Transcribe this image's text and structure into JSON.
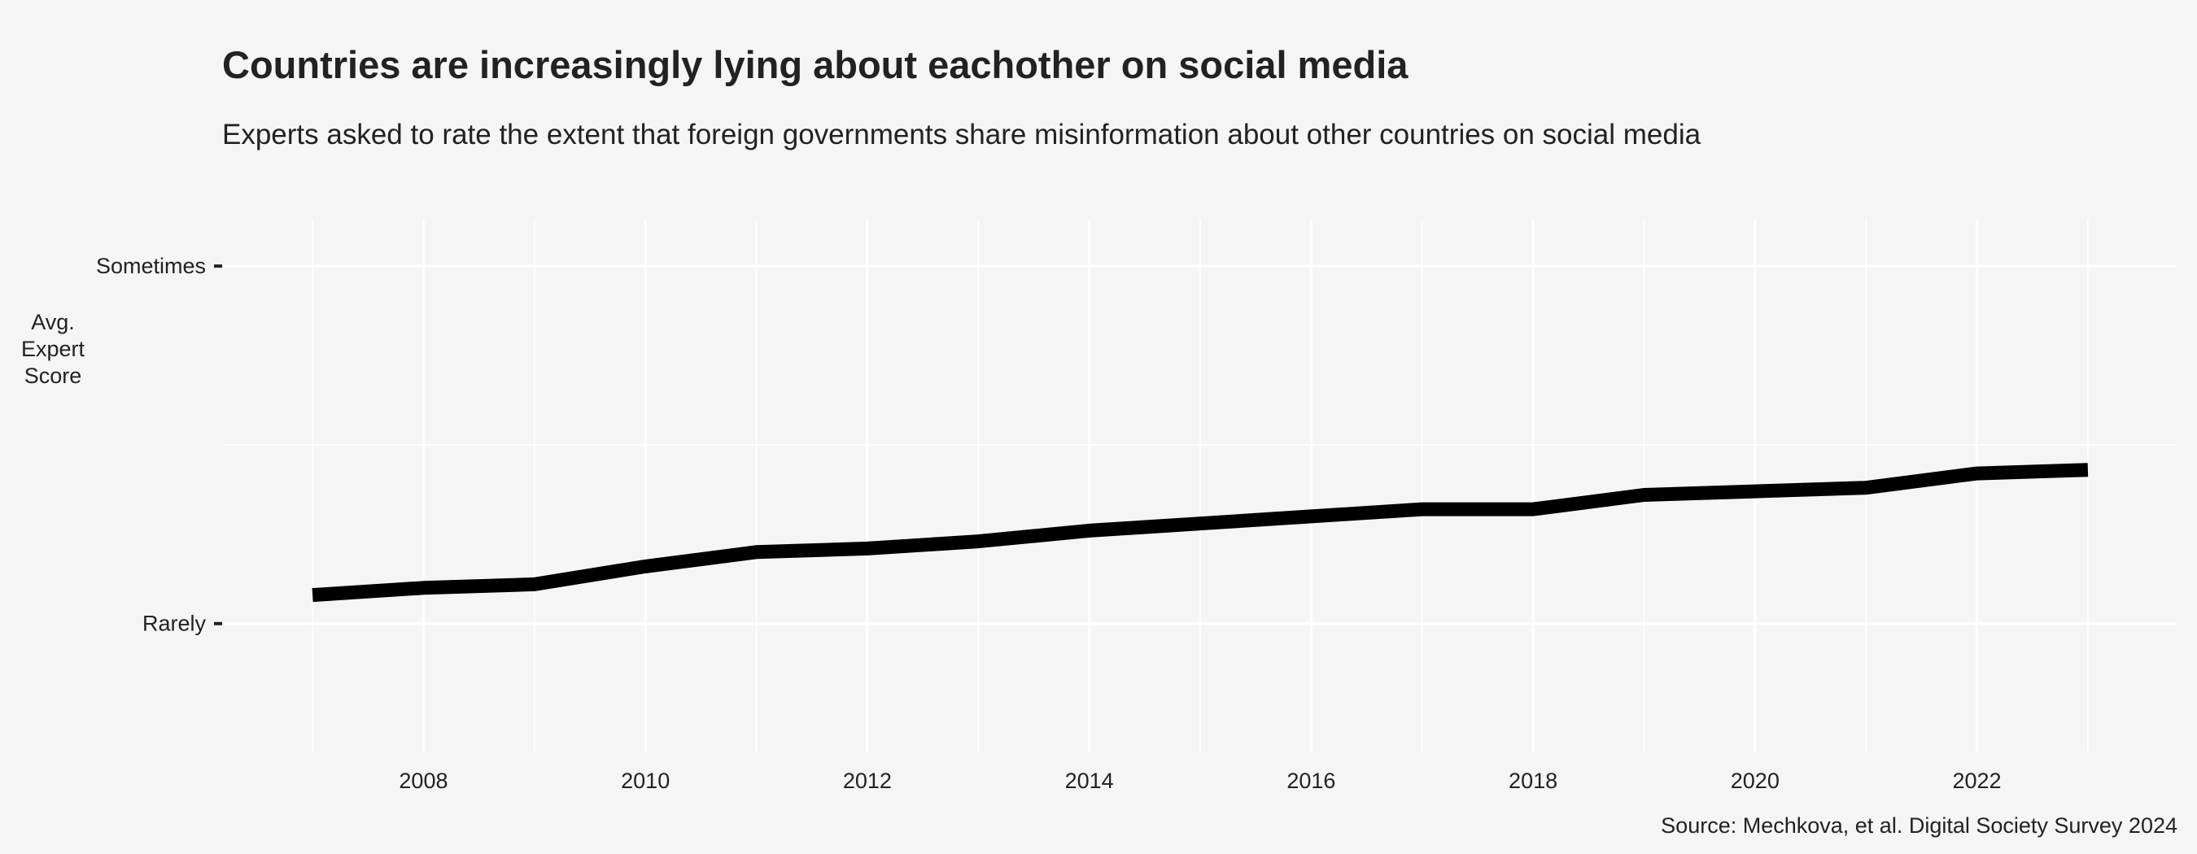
{
  "chart_data": {
    "type": "line",
    "title": "Countries are increasingly lying about eachother on social media",
    "subtitle": "Experts asked to rate the extent that foreign governments share misinformation about other countries on social media",
    "ylabel": "Avg.\nExpert\nScore",
    "xlabel": "",
    "caption": "Source: Mechkova, et al. Digital Society Survey 2024",
    "x": [
      2007,
      2008,
      2009,
      2010,
      2011,
      2012,
      2013,
      2014,
      2015,
      2016,
      2017,
      2018,
      2019,
      2020,
      2021,
      2022,
      2023
    ],
    "series": [
      {
        "values": [
          1.08,
          1.1,
          1.11,
          1.16,
          1.2,
          1.21,
          1.23,
          1.26,
          1.28,
          1.3,
          1.32,
          1.32,
          1.36,
          1.37,
          1.38,
          1.42,
          1.43
        ]
      }
    ],
    "xlim": [
      2006.2,
      2023.8
    ],
    "ylim": [
      0.64,
      2.13
    ],
    "x_ticks": [
      2008,
      2010,
      2012,
      2014,
      2016,
      2018,
      2020,
      2022
    ],
    "y_ticks": [
      {
        "value": 1,
        "label": "Rarely"
      },
      {
        "value": 2,
        "label": "Sometimes"
      }
    ],
    "y_minor_gridlines": [
      1.5
    ],
    "grid": true,
    "line_color": "#000000",
    "background": "#f5f5f5",
    "gridline_color": "#ffffff"
  }
}
